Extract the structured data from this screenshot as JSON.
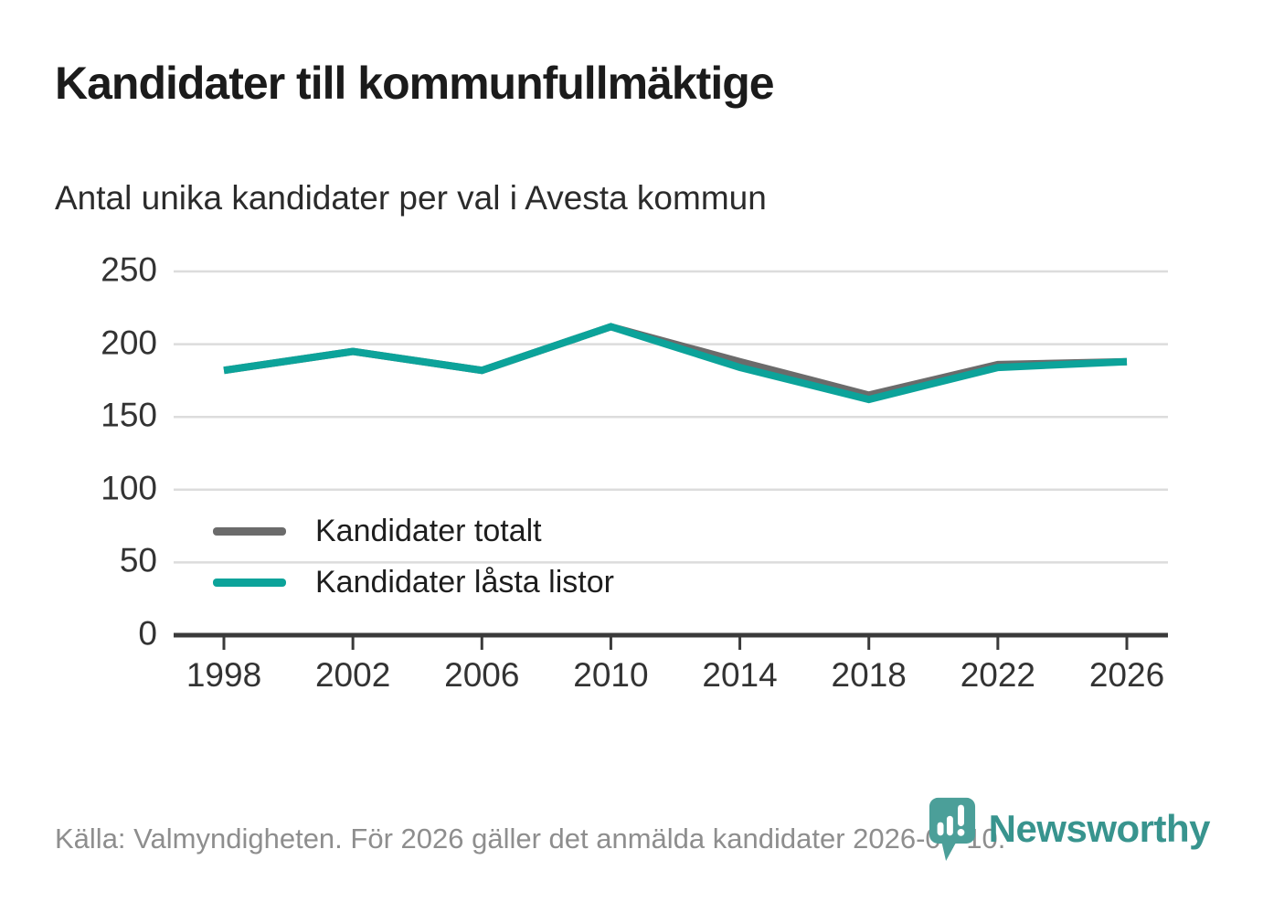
{
  "title": "Kandidater till kommunfullmäktige",
  "subtitle": "Antal unika kandidater per val i Avesta kommun",
  "footer": {
    "source": "Källa: Valmyndigheten. För 2026 gäller det anmälda kandidater 2026-04-10."
  },
  "logo": {
    "text": "Newsworthy",
    "icon": "newsworthy-speech-bubble-barchart-icon",
    "text_color": "#38948e",
    "icon_color": "#4b9f99"
  },
  "colors": {
    "series_total": "#6b6b6b",
    "series_locked": "#0ca39a",
    "gridline": "#dcdcdc",
    "axis": "#3a3a3a",
    "tick_text": "#333333",
    "title_text": "#1b1b1b",
    "source_text": "#8e8e8e"
  },
  "chart_data": {
    "type": "line",
    "title": "Kandidater till kommunfullmäktige",
    "subtitle": "Antal unika kandidater per val i Avesta kommun",
    "categories": [
      "1998",
      "2002",
      "2006",
      "2010",
      "2014",
      "2018",
      "2022",
      "2026"
    ],
    "series": [
      {
        "name": "Kandidater totalt",
        "color": "#6b6b6b",
        "values": [
          182,
          195,
          182,
          212,
          188,
          165,
          186,
          188
        ]
      },
      {
        "name": "Kandidater låsta listor",
        "color": "#0ca39a",
        "values": [
          182,
          195,
          182,
          212,
          184,
          162,
          184,
          188
        ]
      }
    ],
    "xlabel": "",
    "ylabel": "",
    "ylim": [
      0,
      250
    ],
    "yticks": [
      0,
      50,
      100,
      150,
      200,
      250
    ],
    "grid": "horizontal",
    "legend_position": "inside-bottom-left"
  }
}
